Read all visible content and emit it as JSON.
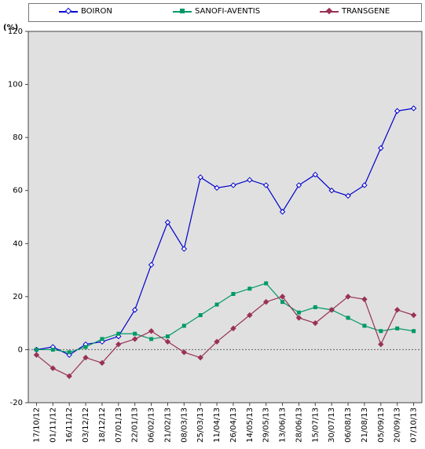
{
  "chart_data": {
    "type": "line",
    "title": "",
    "xlabel": "",
    "ylabel": "(%)",
    "ylim": [
      -20,
      120
    ],
    "yticks": [
      -20,
      0,
      20,
      40,
      60,
      80,
      100,
      120
    ],
    "x_tick_labels": [
      "17/10/12",
      "01/11/12",
      "16/11/12",
      "03/12/12",
      "18/12/12",
      "07/01/13",
      "22/01/13",
      "06/02/13",
      "21/02/13",
      "08/03/13",
      "25/03/13",
      "11/04/13",
      "26/04/13",
      "14/05/13",
      "29/05/13",
      "13/06/13",
      "28/06/13",
      "15/07/13",
      "30/07/13",
      "06/08/13",
      "21/08/13",
      "05/09/13",
      "20/09/13",
      "07/10/13"
    ],
    "legend_position": "top",
    "grid": false,
    "series": [
      {
        "name": "BOIRON",
        "color": "#0000cc",
        "marker": "diamond",
        "x": [
          "17/10/12",
          "01/11/12",
          "16/11/12",
          "03/12/12",
          "18/12/12",
          "07/01/13",
          "22/01/13",
          "06/02/13",
          "21/02/13",
          "08/03/13",
          "25/03/13",
          "11/04/13",
          "26/04/13",
          "14/05/13",
          "29/05/13",
          "13/06/13",
          "28/06/13",
          "15/07/13",
          "30/07/13",
          "06/08/13",
          "21/08/13",
          "05/09/13",
          "20/09/13",
          "07/10/13"
        ],
        "values": [
          0,
          1,
          -2,
          2,
          3,
          5,
          15,
          32,
          48,
          38,
          65,
          61,
          62,
          64,
          62,
          52,
          62,
          66,
          60,
          58,
          62,
          76,
          90,
          91
        ]
      },
      {
        "name": "SANOFI-AVENTIS",
        "color": "#009966",
        "marker": "square",
        "x": [
          "17/10/12",
          "01/11/12",
          "16/11/12",
          "03/12/12",
          "18/12/12",
          "07/01/13",
          "22/01/13",
          "06/02/13",
          "21/02/13",
          "08/03/13",
          "25/03/13",
          "11/04/13",
          "26/04/13",
          "14/05/13",
          "29/05/13",
          "13/06/13",
          "28/06/13",
          "15/07/13",
          "30/07/13",
          "06/08/13",
          "21/08/13",
          "05/09/13",
          "20/09/13",
          "07/10/13"
        ],
        "values": [
          0,
          0,
          -1,
          1,
          4,
          6,
          6,
          4,
          5,
          9,
          13,
          17,
          21,
          23,
          25,
          18,
          14,
          16,
          15,
          12,
          9,
          7,
          8,
          7
        ]
      },
      {
        "name": "TRANSGENE",
        "color": "#993355",
        "marker": "diamond",
        "x": [
          "17/10/12",
          "01/11/12",
          "16/11/12",
          "03/12/12",
          "18/12/12",
          "07/01/13",
          "22/01/13",
          "06/02/13",
          "21/02/13",
          "08/03/13",
          "25/03/13",
          "11/04/13",
          "26/04/13",
          "14/05/13",
          "29/05/13",
          "13/06/13",
          "28/06/13",
          "15/07/13",
          "30/07/13",
          "06/08/13",
          "21/08/13",
          "05/09/13",
          "20/09/13",
          "07/10/13"
        ],
        "values": [
          -2,
          -7,
          -10,
          -3,
          -5,
          2,
          4,
          7,
          3,
          -1,
          -3,
          3,
          8,
          13,
          18,
          20,
          12,
          10,
          15,
          20,
          19,
          2,
          15,
          13
        ]
      }
    ]
  }
}
